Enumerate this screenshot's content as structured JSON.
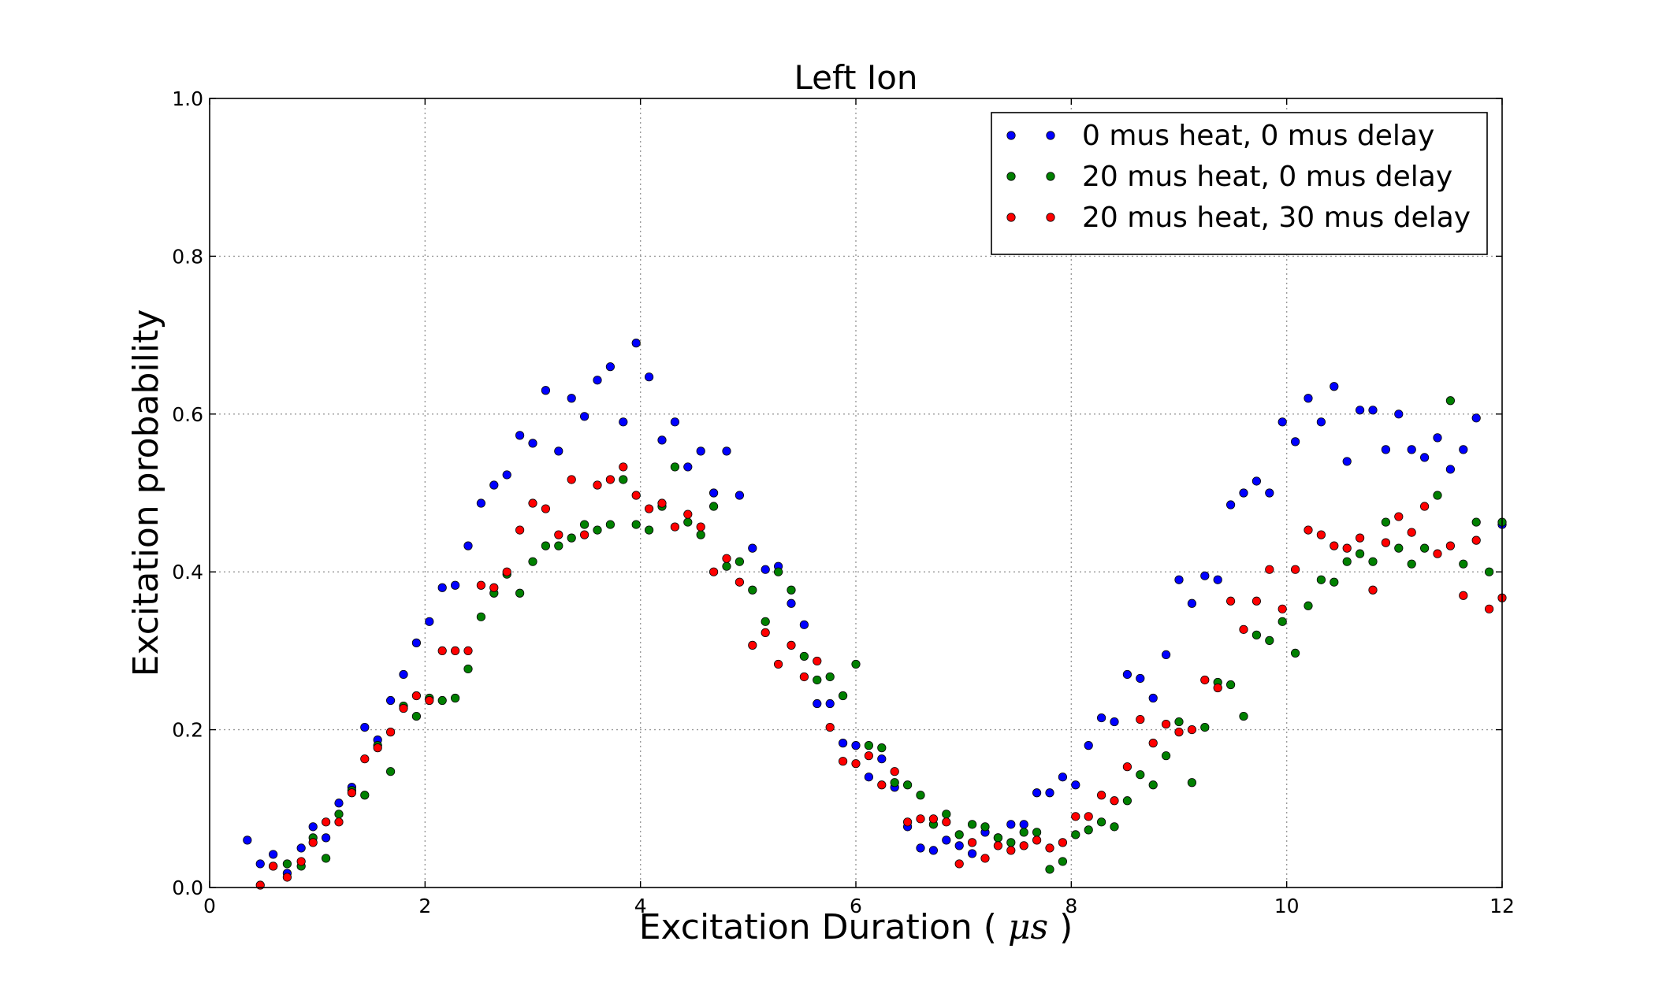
{
  "chart_data": {
    "type": "scatter",
    "title": "Left Ion",
    "xlabel": "Excitation Duration",
    "xlabel_unit": "μs",
    "ylabel": "Excitation probability",
    "xlim": [
      0,
      12
    ],
    "ylim": [
      0,
      1.0
    ],
    "x_ticks": [
      0,
      2,
      4,
      6,
      8,
      10,
      12
    ],
    "y_ticks": [
      0.0,
      0.2,
      0.4,
      0.6,
      0.8,
      1.0
    ],
    "x_tick_labels": [
      "0",
      "2",
      "4",
      "6",
      "8",
      "10",
      "12"
    ],
    "y_tick_labels": [
      "0.0",
      "0.2",
      "0.4",
      "0.6",
      "0.8",
      "1.0"
    ],
    "grid": true,
    "legend_position": "top-right",
    "series": [
      {
        "name": "0 mus heat, 0 mus delay",
        "color": "#0000ff",
        "points": [
          [
            0.35,
            0.06
          ],
          [
            0.47,
            0.03
          ],
          [
            0.59,
            0.042
          ],
          [
            0.72,
            0.018
          ],
          [
            0.85,
            0.05
          ],
          [
            0.96,
            0.077
          ],
          [
            1.08,
            0.063
          ],
          [
            1.2,
            0.107
          ],
          [
            1.32,
            0.127
          ],
          [
            1.44,
            0.203
          ],
          [
            1.56,
            0.187
          ],
          [
            1.68,
            0.237
          ],
          [
            1.8,
            0.27
          ],
          [
            1.92,
            0.31
          ],
          [
            2.04,
            0.337
          ],
          [
            2.16,
            0.38
          ],
          [
            2.28,
            0.383
          ],
          [
            2.4,
            0.433
          ],
          [
            2.52,
            0.487
          ],
          [
            2.64,
            0.51
          ],
          [
            2.76,
            0.523
          ],
          [
            2.88,
            0.573
          ],
          [
            3.0,
            0.563
          ],
          [
            3.12,
            0.63
          ],
          [
            3.24,
            0.553
          ],
          [
            3.36,
            0.62
          ],
          [
            3.48,
            0.597
          ],
          [
            3.6,
            0.643
          ],
          [
            3.72,
            0.66
          ],
          [
            3.84,
            0.59
          ],
          [
            3.96,
            0.69
          ],
          [
            4.08,
            0.647
          ],
          [
            4.2,
            0.567
          ],
          [
            4.32,
            0.59
          ],
          [
            4.44,
            0.533
          ],
          [
            4.56,
            0.553
          ],
          [
            4.68,
            0.5
          ],
          [
            4.8,
            0.553
          ],
          [
            4.92,
            0.497
          ],
          [
            5.04,
            0.43
          ],
          [
            5.16,
            0.403
          ],
          [
            5.28,
            0.407
          ],
          [
            5.4,
            0.36
          ],
          [
            5.52,
            0.333
          ],
          [
            5.64,
            0.233
          ],
          [
            5.76,
            0.233
          ],
          [
            5.88,
            0.183
          ],
          [
            6.0,
            0.18
          ],
          [
            6.12,
            0.14
          ],
          [
            6.24,
            0.163
          ],
          [
            6.36,
            0.127
          ],
          [
            6.48,
            0.077
          ],
          [
            6.6,
            0.05
          ],
          [
            6.72,
            0.047
          ],
          [
            6.84,
            0.06
          ],
          [
            6.96,
            0.053
          ],
          [
            7.08,
            0.043
          ],
          [
            7.2,
            0.07
          ],
          [
            7.32,
            0.063
          ],
          [
            7.44,
            0.08
          ],
          [
            7.56,
            0.08
          ],
          [
            7.68,
            0.12
          ],
          [
            7.8,
            0.12
          ],
          [
            7.92,
            0.14
          ],
          [
            8.04,
            0.13
          ],
          [
            8.16,
            0.18
          ],
          [
            8.28,
            0.215
          ],
          [
            8.4,
            0.21
          ],
          [
            8.52,
            0.27
          ],
          [
            8.64,
            0.265
          ],
          [
            8.76,
            0.24
          ],
          [
            8.88,
            0.295
          ],
          [
            9.0,
            0.39
          ],
          [
            9.12,
            0.36
          ],
          [
            9.24,
            0.395
          ],
          [
            9.36,
            0.39
          ],
          [
            9.48,
            0.485
          ],
          [
            9.6,
            0.5
          ],
          [
            9.72,
            0.515
          ],
          [
            9.84,
            0.5
          ],
          [
            9.96,
            0.59
          ],
          [
            10.08,
            0.565
          ],
          [
            10.2,
            0.62
          ],
          [
            10.32,
            0.59
          ],
          [
            10.44,
            0.635
          ],
          [
            10.56,
            0.54
          ],
          [
            10.68,
            0.605
          ],
          [
            10.8,
            0.605
          ],
          [
            10.92,
            0.555
          ],
          [
            11.04,
            0.6
          ],
          [
            11.16,
            0.555
          ],
          [
            11.28,
            0.545
          ],
          [
            11.4,
            0.57
          ],
          [
            11.52,
            0.53
          ],
          [
            11.64,
            0.555
          ],
          [
            11.76,
            0.595
          ],
          [
            12.0,
            0.46
          ]
        ]
      },
      {
        "name": "20 mus heat, 0 mus delay",
        "color": "#008000",
        "points": [
          [
            0.59,
            0.027
          ],
          [
            0.72,
            0.03
          ],
          [
            0.85,
            0.027
          ],
          [
            0.96,
            0.063
          ],
          [
            1.08,
            0.037
          ],
          [
            1.2,
            0.093
          ],
          [
            1.32,
            0.123
          ],
          [
            1.44,
            0.117
          ],
          [
            1.56,
            0.18
          ],
          [
            1.68,
            0.147
          ],
          [
            1.8,
            0.23
          ],
          [
            1.92,
            0.217
          ],
          [
            2.04,
            0.24
          ],
          [
            2.16,
            0.237
          ],
          [
            2.28,
            0.24
          ],
          [
            2.4,
            0.277
          ],
          [
            2.52,
            0.343
          ],
          [
            2.64,
            0.373
          ],
          [
            2.76,
            0.397
          ],
          [
            2.88,
            0.373
          ],
          [
            3.0,
            0.413
          ],
          [
            3.12,
            0.433
          ],
          [
            3.24,
            0.433
          ],
          [
            3.36,
            0.443
          ],
          [
            3.48,
            0.46
          ],
          [
            3.6,
            0.453
          ],
          [
            3.72,
            0.46
          ],
          [
            3.84,
            0.517
          ],
          [
            3.96,
            0.46
          ],
          [
            4.08,
            0.453
          ],
          [
            4.2,
            0.483
          ],
          [
            4.32,
            0.533
          ],
          [
            4.44,
            0.463
          ],
          [
            4.56,
            0.447
          ],
          [
            4.68,
            0.483
          ],
          [
            4.8,
            0.407
          ],
          [
            4.92,
            0.413
          ],
          [
            5.04,
            0.377
          ],
          [
            5.16,
            0.337
          ],
          [
            5.28,
            0.4
          ],
          [
            5.4,
            0.377
          ],
          [
            5.52,
            0.293
          ],
          [
            5.64,
            0.263
          ],
          [
            5.76,
            0.267
          ],
          [
            5.88,
            0.243
          ],
          [
            6.0,
            0.283
          ],
          [
            6.12,
            0.18
          ],
          [
            6.24,
            0.177
          ],
          [
            6.36,
            0.133
          ],
          [
            6.48,
            0.13
          ],
          [
            6.6,
            0.117
          ],
          [
            6.72,
            0.08
          ],
          [
            6.84,
            0.093
          ],
          [
            6.96,
            0.067
          ],
          [
            7.08,
            0.08
          ],
          [
            7.2,
            0.077
          ],
          [
            7.32,
            0.063
          ],
          [
            7.44,
            0.057
          ],
          [
            7.56,
            0.07
          ],
          [
            7.68,
            0.07
          ],
          [
            7.8,
            0.023
          ],
          [
            7.92,
            0.033
          ],
          [
            8.04,
            0.067
          ],
          [
            8.16,
            0.073
          ],
          [
            8.28,
            0.083
          ],
          [
            8.4,
            0.077
          ],
          [
            8.52,
            0.11
          ],
          [
            8.64,
            0.143
          ],
          [
            8.76,
            0.13
          ],
          [
            8.88,
            0.167
          ],
          [
            9.0,
            0.21
          ],
          [
            9.12,
            0.133
          ],
          [
            9.24,
            0.203
          ],
          [
            9.36,
            0.26
          ],
          [
            9.48,
            0.257
          ],
          [
            9.6,
            0.217
          ],
          [
            9.72,
            0.32
          ],
          [
            9.84,
            0.313
          ],
          [
            9.96,
            0.337
          ],
          [
            10.08,
            0.297
          ],
          [
            10.2,
            0.357
          ],
          [
            10.32,
            0.39
          ],
          [
            10.44,
            0.387
          ],
          [
            10.56,
            0.413
          ],
          [
            10.68,
            0.423
          ],
          [
            10.8,
            0.413
          ],
          [
            10.92,
            0.463
          ],
          [
            11.04,
            0.43
          ],
          [
            11.16,
            0.41
          ],
          [
            11.28,
            0.43
          ],
          [
            11.4,
            0.497
          ],
          [
            11.52,
            0.617
          ],
          [
            11.64,
            0.41
          ],
          [
            11.76,
            0.463
          ],
          [
            11.88,
            0.4
          ],
          [
            12.0,
            0.463
          ]
        ]
      },
      {
        "name": "20 mus heat, 30 mus delay",
        "color": "#ff0000",
        "points": [
          [
            0.47,
            0.003
          ],
          [
            0.59,
            0.027
          ],
          [
            0.72,
            0.013
          ],
          [
            0.85,
            0.033
          ],
          [
            0.96,
            0.057
          ],
          [
            1.08,
            0.083
          ],
          [
            1.2,
            0.083
          ],
          [
            1.32,
            0.12
          ],
          [
            1.44,
            0.163
          ],
          [
            1.56,
            0.177
          ],
          [
            1.68,
            0.197
          ],
          [
            1.8,
            0.227
          ],
          [
            1.92,
            0.243
          ],
          [
            2.04,
            0.237
          ],
          [
            2.16,
            0.3
          ],
          [
            2.28,
            0.3
          ],
          [
            2.4,
            0.3
          ],
          [
            2.52,
            0.383
          ],
          [
            2.64,
            0.38
          ],
          [
            2.76,
            0.4
          ],
          [
            2.88,
            0.453
          ],
          [
            3.0,
            0.487
          ],
          [
            3.12,
            0.48
          ],
          [
            3.24,
            0.447
          ],
          [
            3.36,
            0.517
          ],
          [
            3.48,
            0.447
          ],
          [
            3.6,
            0.51
          ],
          [
            3.72,
            0.517
          ],
          [
            3.84,
            0.533
          ],
          [
            3.96,
            0.497
          ],
          [
            4.08,
            0.48
          ],
          [
            4.2,
            0.487
          ],
          [
            4.32,
            0.457
          ],
          [
            4.44,
            0.473
          ],
          [
            4.56,
            0.457
          ],
          [
            4.68,
            0.4
          ],
          [
            4.8,
            0.417
          ],
          [
            4.92,
            0.387
          ],
          [
            5.04,
            0.307
          ],
          [
            5.16,
            0.323
          ],
          [
            5.28,
            0.283
          ],
          [
            5.4,
            0.307
          ],
          [
            5.52,
            0.267
          ],
          [
            5.64,
            0.287
          ],
          [
            5.76,
            0.203
          ],
          [
            5.88,
            0.16
          ],
          [
            6.0,
            0.157
          ],
          [
            6.12,
            0.167
          ],
          [
            6.24,
            0.13
          ],
          [
            6.36,
            0.147
          ],
          [
            6.48,
            0.083
          ],
          [
            6.6,
            0.087
          ],
          [
            6.72,
            0.087
          ],
          [
            6.84,
            0.083
          ],
          [
            6.96,
            0.03
          ],
          [
            7.08,
            0.057
          ],
          [
            7.2,
            0.037
          ],
          [
            7.32,
            0.053
          ],
          [
            7.44,
            0.047
          ],
          [
            7.56,
            0.053
          ],
          [
            7.68,
            0.06
          ],
          [
            7.8,
            0.05
          ],
          [
            7.92,
            0.057
          ],
          [
            8.04,
            0.09
          ],
          [
            8.16,
            0.09
          ],
          [
            8.28,
            0.117
          ],
          [
            8.4,
            0.11
          ],
          [
            8.52,
            0.153
          ],
          [
            8.64,
            0.213
          ],
          [
            8.76,
            0.183
          ],
          [
            8.88,
            0.207
          ],
          [
            9.0,
            0.197
          ],
          [
            9.12,
            0.2
          ],
          [
            9.24,
            0.263
          ],
          [
            9.36,
            0.253
          ],
          [
            9.48,
            0.363
          ],
          [
            9.6,
            0.327
          ],
          [
            9.72,
            0.363
          ],
          [
            9.84,
            0.403
          ],
          [
            9.96,
            0.353
          ],
          [
            10.08,
            0.403
          ],
          [
            10.2,
            0.453
          ],
          [
            10.32,
            0.447
          ],
          [
            10.44,
            0.433
          ],
          [
            10.56,
            0.43
          ],
          [
            10.68,
            0.443
          ],
          [
            10.8,
            0.377
          ],
          [
            10.92,
            0.437
          ],
          [
            11.04,
            0.47
          ],
          [
            11.16,
            0.45
          ],
          [
            11.28,
            0.483
          ],
          [
            11.4,
            0.423
          ],
          [
            11.52,
            0.433
          ],
          [
            11.64,
            0.37
          ],
          [
            11.76,
            0.44
          ],
          [
            11.88,
            0.353
          ],
          [
            12.0,
            0.367
          ]
        ]
      }
    ]
  }
}
